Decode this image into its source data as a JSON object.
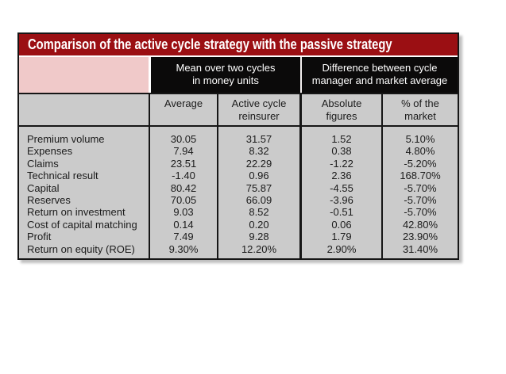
{
  "chart_data": {
    "type": "table",
    "title": "Comparison of the active cycle strategy with the passive strategy",
    "column_groups": [
      {
        "label": "Mean over two cycles in money units",
        "line1": "Mean over two cycles",
        "line2": "in money units",
        "columns": [
          "Average",
          "Active cycle reinsurer"
        ]
      },
      {
        "label": "Difference between cycle manager and market average",
        "line1": "Difference between cycle",
        "line2": "manager and market average",
        "columns": [
          "Absolute figures",
          "% of the market"
        ]
      }
    ],
    "subheaders": [
      {
        "line1": "Average",
        "line2": ""
      },
      {
        "line1": "Active cycle",
        "line2": "reinsurer"
      },
      {
        "line1": "Absolute",
        "line2": "figures"
      },
      {
        "line1": "% of the",
        "line2": "market"
      }
    ],
    "rows": [
      {
        "label": "Premium volume",
        "values": [
          "30.05",
          "31.57",
          "1.52",
          "5.10%"
        ]
      },
      {
        "label": "Expenses",
        "values": [
          "7.94",
          "8.32",
          "0.38",
          "4.80%"
        ]
      },
      {
        "label": "Claims",
        "values": [
          "23.51",
          "22.29",
          "-1.22",
          "-5.20%"
        ]
      },
      {
        "label": "Technical result",
        "values": [
          "-1.40",
          "0.96",
          "2.36",
          "168.70%"
        ]
      },
      {
        "label": "Capital",
        "values": [
          "80.42",
          "75.87",
          "-4.55",
          "-5.70%"
        ]
      },
      {
        "label": "Reserves",
        "values": [
          "70.05",
          "66.09",
          "-3.96",
          "-5.70%"
        ]
      },
      {
        "label": "Return on investment",
        "values": [
          "9.03",
          "8.52",
          "-0.51",
          "-5.70%"
        ]
      },
      {
        "label": "Cost of capital matching",
        "values": [
          "0.14",
          "0.20",
          "0.06",
          "42.80%"
        ]
      },
      {
        "label": "Profit",
        "values": [
          "7.49",
          "9.28",
          "1.79",
          "23.90%"
        ]
      },
      {
        "label": "Return on equity (ROE)",
        "values": [
          "9.30%",
          "12.20%",
          "2.90%",
          "31.40%"
        ]
      }
    ],
    "colors": {
      "title_bar": "#9b0f13",
      "group_header_bg": "#0b0a0a",
      "corner_highlight": "#f0c9c9",
      "table_body_bg": "#cbcbcb",
      "border": "#161616"
    }
  }
}
